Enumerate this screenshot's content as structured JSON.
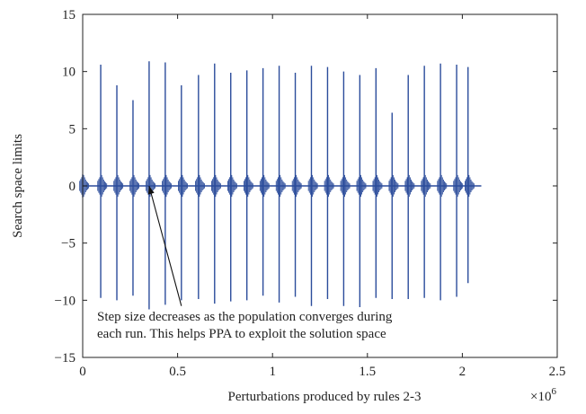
{
  "chart_data": {
    "type": "line",
    "title": "",
    "xlabel": "Perturbations produced by rules 2-3",
    "ylabel": "Search space limits",
    "x_multiplier_label": "×10",
    "x_multiplier_exponent": "6",
    "xlim": [
      0,
      2.5
    ],
    "ylim": [
      -15,
      15
    ],
    "xticks": [
      0,
      0.5,
      1,
      1.5,
      2,
      2.5
    ],
    "xtick_labels": [
      "0",
      "0.5",
      "1",
      "1.5",
      "2",
      "2.5"
    ],
    "yticks": [
      -15,
      -10,
      -5,
      0,
      5,
      10,
      15
    ],
    "ytick_labels": [
      "−15",
      "−10",
      "−5",
      "0",
      "5",
      "10",
      "15"
    ],
    "grid": false,
    "series_color": "#2b4c9b",
    "baseline": {
      "x_start": 0,
      "x_end": 2.1,
      "y": 0
    },
    "runs": [
      {
        "x": 0.0,
        "y_max": 1.0,
        "y_min": -1.0
      },
      {
        "x": 0.095,
        "y_max": 10.6,
        "y_min": -9.8
      },
      {
        "x": 0.18,
        "y_max": 8.8,
        "y_min": -10.0
      },
      {
        "x": 0.265,
        "y_max": 7.5,
        "y_min": -9.6
      },
      {
        "x": 0.35,
        "y_max": 10.9,
        "y_min": -10.8
      },
      {
        "x": 0.435,
        "y_max": 10.8,
        "y_min": -10.4
      },
      {
        "x": 0.52,
        "y_max": 8.8,
        "y_min": -10.0
      },
      {
        "x": 0.61,
        "y_max": 9.7,
        "y_min": -9.9
      },
      {
        "x": 0.695,
        "y_max": 10.7,
        "y_min": -10.3
      },
      {
        "x": 0.78,
        "y_max": 9.9,
        "y_min": -10.1
      },
      {
        "x": 0.865,
        "y_max": 10.1,
        "y_min": -10.0
      },
      {
        "x": 0.95,
        "y_max": 10.3,
        "y_min": -9.6
      },
      {
        "x": 1.035,
        "y_max": 10.5,
        "y_min": -10.2
      },
      {
        "x": 1.12,
        "y_max": 9.9,
        "y_min": -9.7
      },
      {
        "x": 1.205,
        "y_max": 10.5,
        "y_min": -10.5
      },
      {
        "x": 1.29,
        "y_max": 10.4,
        "y_min": -9.9
      },
      {
        "x": 1.375,
        "y_max": 10.0,
        "y_min": -10.5
      },
      {
        "x": 1.46,
        "y_max": 9.7,
        "y_min": -10.6
      },
      {
        "x": 1.545,
        "y_max": 10.3,
        "y_min": -9.8
      },
      {
        "x": 1.63,
        "y_max": 6.4,
        "y_min": -9.9
      },
      {
        "x": 1.715,
        "y_max": 9.7,
        "y_min": -9.9
      },
      {
        "x": 1.8,
        "y_max": 10.5,
        "y_min": -9.8
      },
      {
        "x": 1.885,
        "y_max": 10.7,
        "y_min": -10.0
      },
      {
        "x": 1.97,
        "y_max": 10.6,
        "y_min": -9.7
      },
      {
        "x": 2.03,
        "y_max": 10.4,
        "y_min": -8.5
      }
    ],
    "annotation": {
      "lines": [
        "Step size decreases as the population converges during",
        "each run. This helps PPA to exploit the solution space"
      ],
      "arrow_from": {
        "x": 0.52,
        "y": -10.5
      },
      "arrow_to": {
        "x": 0.35,
        "y": 0.0
      }
    }
  }
}
